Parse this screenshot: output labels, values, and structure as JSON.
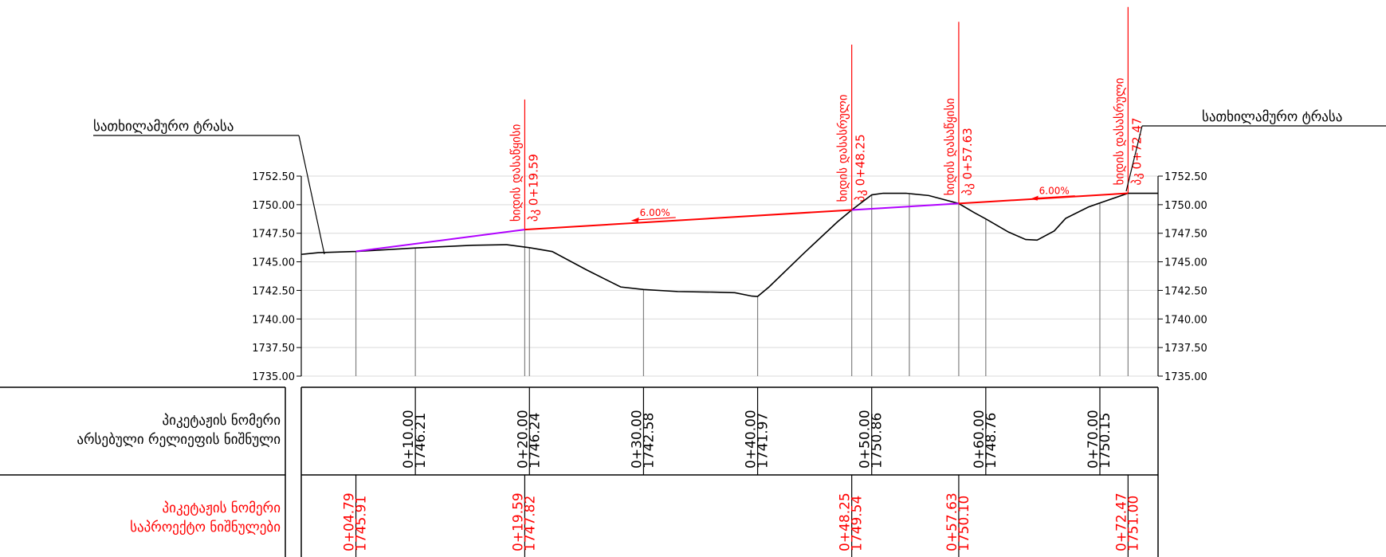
{
  "colors": {
    "ground": "#000000",
    "design": "#ff0000",
    "bridge": "#b000ff",
    "grid": "#d9d9d9",
    "stem": "#808080"
  },
  "callouts": {
    "left": "სათხილამურო ტრასა",
    "right": "სათხილამურო ტრასა"
  },
  "slopes": [
    {
      "label": "6.00%",
      "x": 31,
      "y": 1748.6
    },
    {
      "label": "6.00%",
      "x": 66,
      "y": 1750.5
    }
  ],
  "table": {
    "row1_label_line1": "პიკეტაჟის ნომერი",
    "row1_label_line2": "არსებული რელიეფის ნიშნული",
    "row2_label_line1": "პიკეტაჟის ნომერი",
    "row2_label_line2": "საპროექტო ნიშნულები"
  },
  "chart_data": {
    "type": "line",
    "title": "",
    "xlabel": "",
    "ylabel": "",
    "xlim": [
      0.0,
      75.1
    ],
    "ylim": [
      1735.0,
      1752.5
    ],
    "y_ticks": [
      "1735.00",
      "1737.50",
      "1740.00",
      "1742.50",
      "1745.00",
      "1747.50",
      "1750.00",
      "1752.50"
    ],
    "ground_profile": {
      "name": "",
      "x": [
        0.0,
        1.5,
        4.79,
        10.0,
        15.0,
        18.0,
        20.0,
        22.0,
        25.0,
        28.0,
        30.0,
        33.0,
        36.0,
        38.0,
        39.5,
        40.0,
        41.0,
        44.0,
        47.0,
        48.25,
        50.0,
        51.0,
        53.0,
        55.0,
        57.63,
        59.0,
        60.0,
        62.0,
        63.5,
        64.5,
        66.0,
        67.0,
        69.0,
        70.0,
        72.47,
        75.1
      ],
      "y": [
        1745.65,
        1745.8,
        1745.91,
        1746.21,
        1746.45,
        1746.5,
        1746.24,
        1745.9,
        1744.3,
        1742.8,
        1742.58,
        1742.4,
        1742.35,
        1742.3,
        1742.0,
        1741.97,
        1742.8,
        1745.7,
        1748.5,
        1749.54,
        1750.86,
        1751.0,
        1751.0,
        1750.8,
        1750.1,
        1749.3,
        1748.76,
        1747.6,
        1746.95,
        1746.9,
        1747.7,
        1748.8,
        1749.8,
        1750.15,
        1751.0,
        1751.0
      ]
    },
    "design_profile": {
      "name": "",
      "x": [
        4.79,
        19.59,
        48.25,
        57.63,
        72.47
      ],
      "y": [
        1745.91,
        1747.82,
        1749.54,
        1750.1,
        1751.0
      ],
      "transitions": [
        {
          "from": 4.79,
          "to": 19.59
        },
        {
          "from": 48.25,
          "to": 57.63
        }
      ]
    },
    "existing_stations": [
      {
        "x": 10.0,
        "label": "0+10.00",
        "elev": "1746.21"
      },
      {
        "x": 20.0,
        "label": "0+20.00",
        "elev": "1746.24"
      },
      {
        "x": 30.0,
        "label": "0+30.00",
        "elev": "1742.58"
      },
      {
        "x": 40.0,
        "label": "0+40.00",
        "elev": "1741.97"
      },
      {
        "x": 50.0,
        "label": "0+50.00",
        "elev": "1750.86"
      },
      {
        "x": 60.0,
        "label": "0+60.00",
        "elev": "1748.76"
      },
      {
        "x": 70.0,
        "label": "0+70.00",
        "elev": "1750.15"
      }
    ],
    "extra_stems": [
      53.3
    ],
    "design_stations": [
      {
        "x": 4.79,
        "label": "0+04.79",
        "elev": "1745.91"
      },
      {
        "x": 19.59,
        "label": "0+19.59",
        "elev": "1747.82"
      },
      {
        "x": 48.25,
        "label": "0+48.25",
        "elev": "1749.54"
      },
      {
        "x": 57.63,
        "label": "0+57.63",
        "elev": "1750.10"
      },
      {
        "x": 72.47,
        "label": "0+72.47",
        "elev": "1751.00"
      }
    ],
    "vertical_annotations": [
      {
        "x": 19.59,
        "line1": "ხიდის დასაწყისი",
        "line2": "პკ 0+19.59",
        "top": 1759.2
      },
      {
        "x": 48.25,
        "line1": "ხიდის დასასრული",
        "line2": "პკ 0+48.25",
        "top": 1764.0
      },
      {
        "x": 57.63,
        "line1": "ხიდის დასაწყისი",
        "line2": "პკ 0+57.63",
        "top": 1766.0
      },
      {
        "x": 72.47,
        "line1": "ხიდის დასასრული",
        "line2": "პკ 0+72.47",
        "top": 1767.3
      }
    ]
  }
}
